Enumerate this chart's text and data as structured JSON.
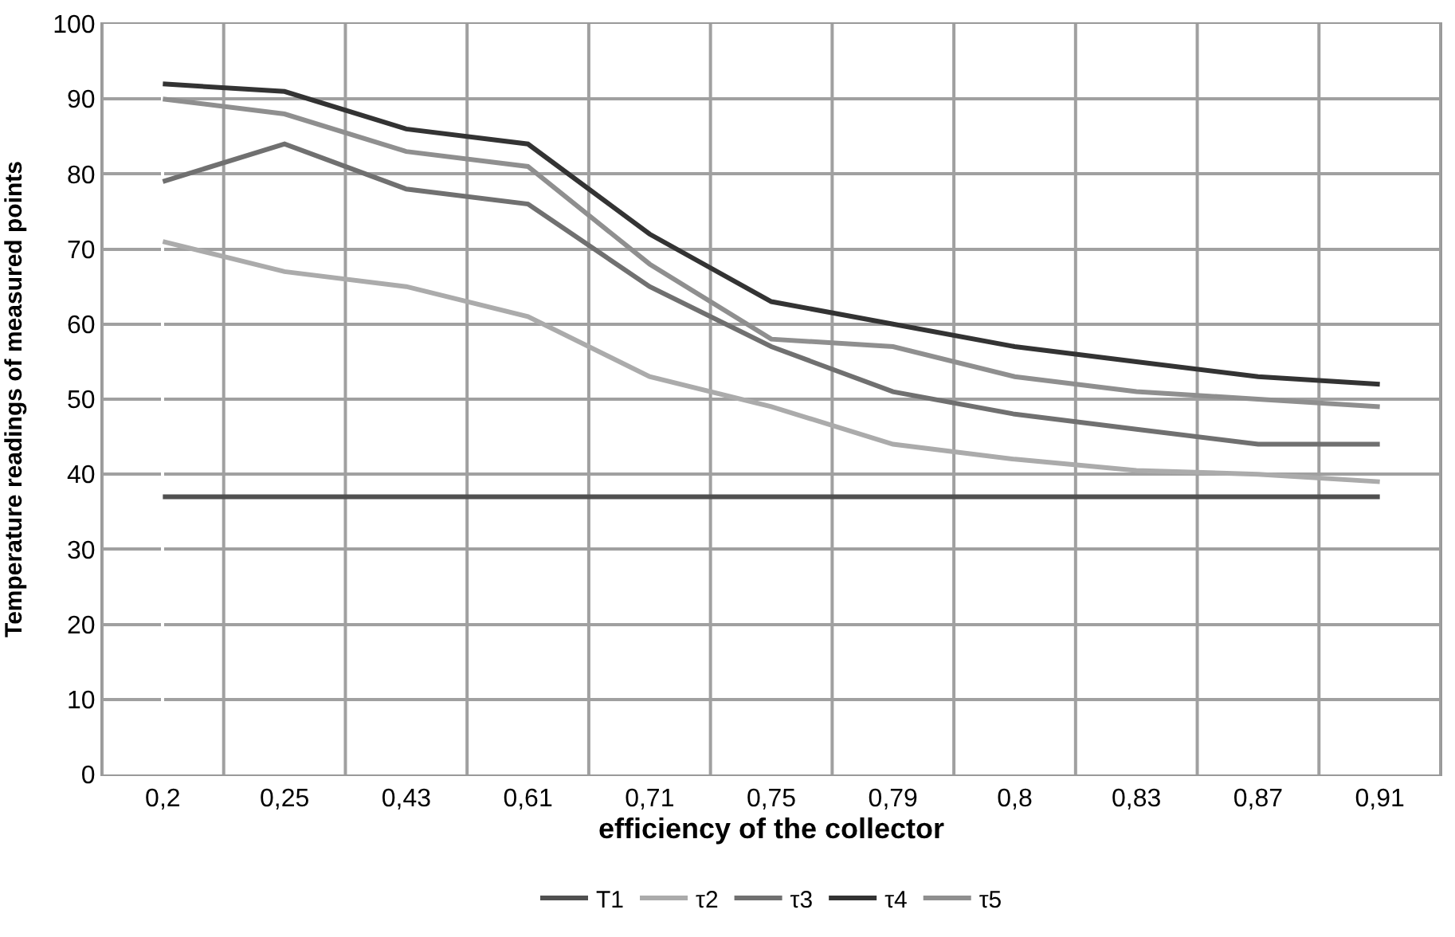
{
  "chart_data": {
    "type": "line",
    "xlabel": "efficiency of the collector",
    "ylabel": "Temperature readings of measured points",
    "categories": [
      "0,2",
      "0,25",
      "0,43",
      "0,61",
      "0,71",
      "0,75",
      "0,79",
      "0,8",
      "0,83",
      "0,87",
      "0,91"
    ],
    "series": [
      {
        "name": "T1",
        "color": "#505050",
        "values": [
          37,
          37,
          37,
          37,
          37,
          37,
          37,
          37,
          37,
          37,
          37
        ]
      },
      {
        "name": "τ2",
        "color": "#ababab",
        "values": [
          71,
          67,
          65,
          61,
          53,
          49,
          44,
          42,
          40.5,
          40,
          39
        ]
      },
      {
        "name": "τ3",
        "color": "#707070",
        "values": [
          79,
          84,
          78,
          76,
          65,
          57,
          51,
          48,
          46,
          44,
          44
        ]
      },
      {
        "name": "τ4",
        "color": "#333333",
        "values": [
          92,
          91,
          86,
          84,
          72,
          63,
          60,
          57,
          55,
          53,
          52
        ]
      },
      {
        "name": "τ5",
        "color": "#8f8f8f",
        "values": [
          90,
          88,
          83,
          81,
          68,
          58,
          57,
          53,
          51,
          50,
          49
        ]
      }
    ],
    "ylim": [
      0,
      100
    ],
    "yticks": [
      0,
      10,
      20,
      30,
      40,
      50,
      60,
      70,
      80,
      90,
      100
    ],
    "grid": true,
    "legend": "bottom",
    "marker": "none",
    "line_style": "solid"
  }
}
